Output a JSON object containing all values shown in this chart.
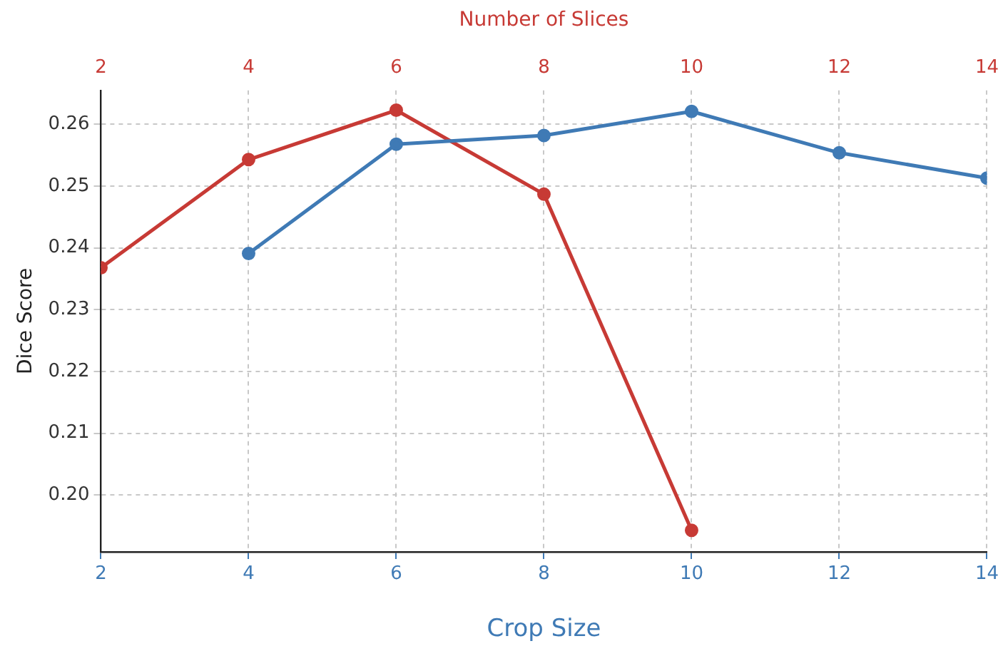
{
  "chart_data": {
    "type": "line",
    "xlabel": "Crop Size",
    "x2label": "Number of Slices",
    "ylabel": "Dice Score",
    "xlim": [
      2,
      14
    ],
    "xticks": [
      2,
      4,
      6,
      8,
      10,
      12,
      14
    ],
    "x2lim": [
      2,
      14
    ],
    "x2ticks": [
      2,
      4,
      6,
      8,
      10,
      12,
      14
    ],
    "ylim": [
      0.1908,
      0.2655
    ],
    "yticks": [
      {
        "value": 0.2,
        "label": "0.20"
      },
      0.21,
      0.22,
      0.23,
      0.24,
      0.25,
      0.26
    ],
    "grid": true,
    "legend": false,
    "marker": "circle",
    "line_style": "solid",
    "series": [
      {
        "color": "#3f7ab5",
        "x": [
          4,
          6,
          8,
          10,
          12,
          14
        ],
        "values": [
          0.2391,
          0.2568,
          0.2582,
          0.2621,
          0.2554,
          0.2513
        ]
      },
      {
        "color": "#c73a35",
        "axis": "x2",
        "x": [
          2,
          4,
          6,
          8,
          10
        ],
        "values": [
          0.2368,
          0.2543,
          0.2623,
          0.2487,
          0.1943
        ]
      }
    ]
  }
}
